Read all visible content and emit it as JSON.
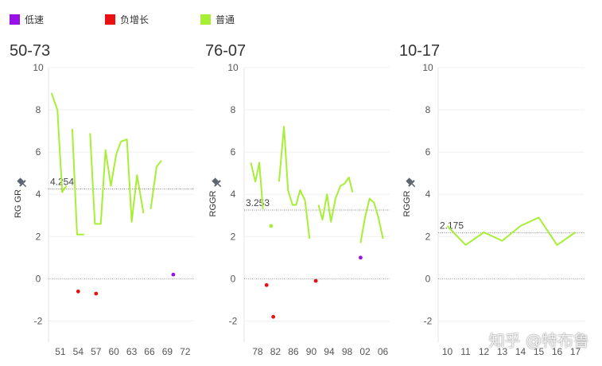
{
  "legend": [
    {
      "label": "低速",
      "color": "#9a11e8"
    },
    {
      "label": "负增长",
      "color": "#e81010"
    },
    {
      "label": "普通",
      "color": "#a6ef36"
    }
  ],
  "watermark": "知乎 @特布鲁",
  "pin_icon": "pin-icon",
  "chart_data": [
    {
      "type": "line",
      "title": "50-73",
      "ylabel": "RG GR",
      "ylim": [
        -3,
        10
      ],
      "yticks": [
        -2,
        0,
        2,
        4,
        6,
        8,
        10
      ],
      "xlim": [
        49,
        73.5
      ],
      "xticks": [
        51,
        54,
        57,
        60,
        63,
        66,
        69,
        72
      ],
      "reference_line": {
        "value": 4.254,
        "label": "4.254"
      },
      "zero_line": 0,
      "series": [
        {
          "category": "普通",
          "color": "#a6ef36",
          "segments": [
            [
              [
                49.5,
                8.8
              ],
              [
                50.5,
                8.0
              ],
              [
                51.3,
                4.1
              ],
              [
                52.0,
                4.4
              ]
            ],
            [
              [
                53.0,
                7.1
              ],
              [
                53.8,
                2.1
              ],
              [
                55.0,
                2.1
              ]
            ],
            [
              [
                56.0,
                6.9
              ],
              [
                56.8,
                2.6
              ],
              [
                57.8,
                2.6
              ],
              [
                58.6,
                6.1
              ],
              [
                59.5,
                4.4
              ],
              [
                60.4,
                5.9
              ],
              [
                61.2,
                6.5
              ],
              [
                62.2,
                6.6
              ],
              [
                63.0,
                2.7
              ],
              [
                63.9,
                4.9
              ],
              [
                65.0,
                3.1
              ]
            ],
            [
              [
                66.2,
                3.3
              ],
              [
                67.2,
                5.3
              ],
              [
                68.0,
                5.6
              ]
            ]
          ]
        },
        {
          "category": "负增长",
          "color": "#e81010",
          "points": [
            [
              54.0,
              -0.6
            ],
            [
              57.0,
              -0.7
            ]
          ]
        },
        {
          "category": "低速",
          "color": "#9a11e8",
          "points": [
            [
              70.0,
              0.2
            ]
          ]
        }
      ]
    },
    {
      "type": "line",
      "title": "76-07",
      "ylabel": "RGGR",
      "ylim": [
        -3,
        10
      ],
      "yticks": [
        -2,
        0,
        2,
        4,
        6,
        8,
        10
      ],
      "xlim": [
        75,
        2007.5
      ],
      "xticks_display": [
        "78",
        "82",
        "86",
        "90",
        "94",
        "98",
        "02",
        "06"
      ],
      "xticks": [
        1978,
        1982,
        1986,
        1990,
        1994,
        1998,
        2002,
        2006
      ],
      "xstart": 1975,
      "reference_line": {
        "value": 3.253,
        "label": "3.253"
      },
      "zero_line": 0,
      "series": [
        {
          "category": "普通",
          "color": "#a6ef36",
          "segments": [
            [
              [
                1976.5,
                5.5
              ],
              [
                1977.5,
                4.6
              ],
              [
                1978.4,
                5.5
              ],
              [
                1979.2,
                3.3
              ]
            ],
            [
              [
                1982.8,
                4.6
              ],
              [
                1983.9,
                7.2
              ],
              [
                1984.8,
                4.2
              ],
              [
                1985.8,
                3.5
              ],
              [
                1986.6,
                3.5
              ],
              [
                1987.5,
                4.2
              ],
              [
                1988.6,
                3.7
              ],
              [
                1989.6,
                1.9
              ]
            ],
            [
              [
                1991.6,
                3.5
              ],
              [
                1992.5,
                2.8
              ],
              [
                1993.5,
                4.0
              ],
              [
                1994.4,
                2.7
              ],
              [
                1995.4,
                3.8
              ],
              [
                1996.5,
                4.4
              ],
              [
                1997.4,
                4.5
              ],
              [
                1998.4,
                4.8
              ],
              [
                1999.2,
                4.1
              ]
            ],
            [
              [
                2001.0,
                1.7
              ],
              [
                2002.0,
                2.9
              ],
              [
                2003.0,
                3.8
              ],
              [
                2004.0,
                3.6
              ],
              [
                2005.0,
                2.9
              ],
              [
                2006.0,
                1.9
              ]
            ]
          ]
        },
        {
          "category": "普通",
          "color": "#a6ef36",
          "points": [
            [
              1981.0,
              2.5
            ]
          ]
        },
        {
          "category": "负增长",
          "color": "#e81010",
          "points": [
            [
              1980.0,
              -0.3
            ],
            [
              1981.5,
              -1.8
            ],
            [
              1991.0,
              -0.1
            ]
          ]
        },
        {
          "category": "低速",
          "color": "#9a11e8",
          "points": [
            [
              2001.0,
              1.0
            ]
          ]
        }
      ]
    },
    {
      "type": "line",
      "title": "10-17",
      "ylabel": "RGGR",
      "ylim": [
        -3,
        10
      ],
      "yticks": [
        -2,
        0,
        2,
        4,
        6,
        8,
        10
      ],
      "xlim": [
        2009.5,
        2017.5
      ],
      "xticks_display": [
        "10",
        "11",
        "12",
        "13",
        "14",
        "15",
        "16",
        "17"
      ],
      "xticks": [
        2010,
        2011,
        2012,
        2013,
        2014,
        2015,
        2016,
        2017
      ],
      "reference_line": {
        "value": 2.175,
        "label": "2.175"
      },
      "zero_line": 0,
      "series": [
        {
          "category": "普通",
          "color": "#a6ef36",
          "segments": [
            [
              [
                2010,
                2.5
              ],
              [
                2011,
                1.6
              ],
              [
                2012,
                2.2
              ],
              [
                2013,
                1.8
              ],
              [
                2014,
                2.5
              ],
              [
                2015,
                2.9
              ],
              [
                2016,
                1.6
              ],
              [
                2017,
                2.2
              ]
            ]
          ]
        }
      ]
    }
  ]
}
